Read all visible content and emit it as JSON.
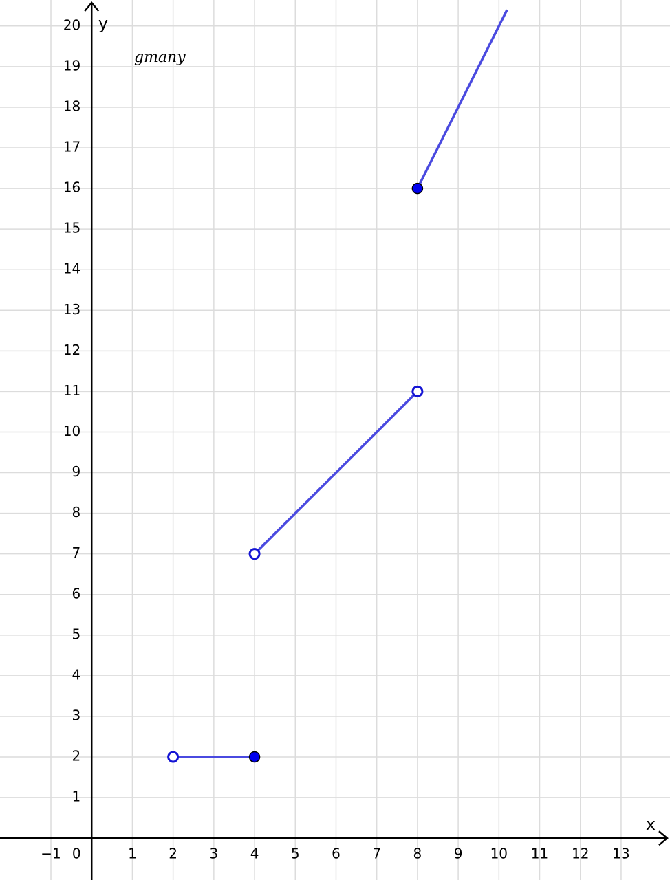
{
  "chart_data": {
    "type": "segments",
    "annotation": "gmany",
    "xlabel": "x",
    "ylabel": "y",
    "xlim": [
      -2.25,
      14.2
    ],
    "ylim": [
      -1.03,
      20.64
    ],
    "xticks": [
      {
        "value": -1,
        "label": "−1"
      },
      0,
      1,
      2,
      3,
      4,
      5,
      6,
      7,
      8,
      9,
      10,
      11,
      12,
      13
    ],
    "yticks": [
      1,
      2,
      3,
      4,
      5,
      6,
      7,
      8,
      9,
      10,
      11,
      12,
      13,
      14,
      15,
      16,
      17,
      18,
      19,
      20
    ],
    "grid": true,
    "color": "#4a4ae0",
    "segments": [
      {
        "x": [
          2,
          4
        ],
        "y": [
          2,
          2
        ],
        "endpoints": [
          "open",
          "closed"
        ]
      },
      {
        "x": [
          4,
          8
        ],
        "y": [
          7,
          11
        ],
        "endpoints": [
          "open",
          "open"
        ]
      },
      {
        "x": [
          8,
          10.2
        ],
        "y": [
          16,
          20.4
        ],
        "endpoints": [
          "closed",
          "none"
        ]
      }
    ]
  }
}
